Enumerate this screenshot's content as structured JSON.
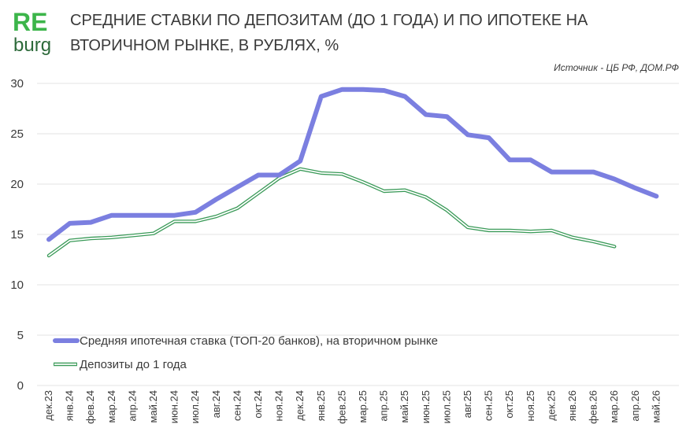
{
  "logo": {
    "top": "RE",
    "bottom": "burg"
  },
  "header": {
    "title_line1": "СРЕДНИЕ СТАВКИ ПО ДЕПОЗИТАМ (ДО 1 ГОДА) И ПО ИПОТЕКЕ НА",
    "title_line2": "ВТОРИЧНОМ РЫНКЕ,  В РУБЛЯХ, %",
    "source": "Источник -  ЦБ РФ, ДОМ.РФ"
  },
  "colors": {
    "mortgage": "#7b7fe0",
    "deposits": "#3a9a58",
    "grid": "#e3e3e3",
    "logo": "#3cb54a"
  },
  "chart_data": {
    "type": "line",
    "title": "СРЕДНИЕ СТАВКИ ПО ДЕПОЗИТАМ (ДО 1 ГОДА) И ПО ИПОТЕКЕ НА ВТОРИЧНОМ РЫНКЕ,  В РУБЛЯХ, %",
    "categories": [
      "дек.23",
      "янв.24",
      "фев.24",
      "мар.24",
      "апр.24",
      "май.24",
      "июн.24",
      "июл.24",
      "авг.24",
      "сен.24",
      "окт.24",
      "ноя.24",
      "дек.24",
      "янв.25",
      "фев.25",
      "мар.25",
      "апр.25",
      "май.25",
      "июн.25",
      "июл.25",
      "авг.25",
      "сен.25",
      "окт.25",
      "ноя.25",
      "дек.25",
      "янв.26",
      "фев.26",
      "мар.26",
      "апр.26",
      "май.26"
    ],
    "yticks": [
      "0",
      "5",
      "10",
      "15",
      "20",
      "25",
      "30"
    ],
    "ylim": [
      0,
      30
    ],
    "grid": true,
    "legend_position": "center-left",
    "series": [
      {
        "name": "Средняя ипотечная ставка  (ТОП-20 банков), на вторичном рынке",
        "color": "#7b7fe0",
        "style": "thick",
        "values": [
          14.5,
          16.1,
          16.2,
          16.9,
          16.9,
          16.9,
          16.9,
          17.2,
          18.5,
          19.7,
          20.9,
          20.9,
          22.3,
          28.7,
          29.4,
          29.4,
          29.3,
          28.7,
          26.9,
          26.7,
          24.9,
          24.6,
          22.4,
          22.4,
          21.2,
          21.2,
          21.2,
          20.5,
          19.6,
          18.8
        ]
      },
      {
        "name": "Депозиты до 1 года",
        "color": "#3a9a58",
        "style": "outline",
        "values": [
          12.9,
          14.4,
          14.6,
          14.7,
          14.9,
          15.1,
          16.3,
          16.3,
          16.8,
          17.6,
          19.1,
          20.6,
          21.5,
          21.1,
          21.0,
          20.2,
          19.3,
          19.4,
          18.7,
          17.4,
          15.7,
          15.4,
          15.4,
          15.3,
          15.4,
          14.7,
          14.3,
          13.8,
          null,
          null
        ]
      }
    ]
  }
}
